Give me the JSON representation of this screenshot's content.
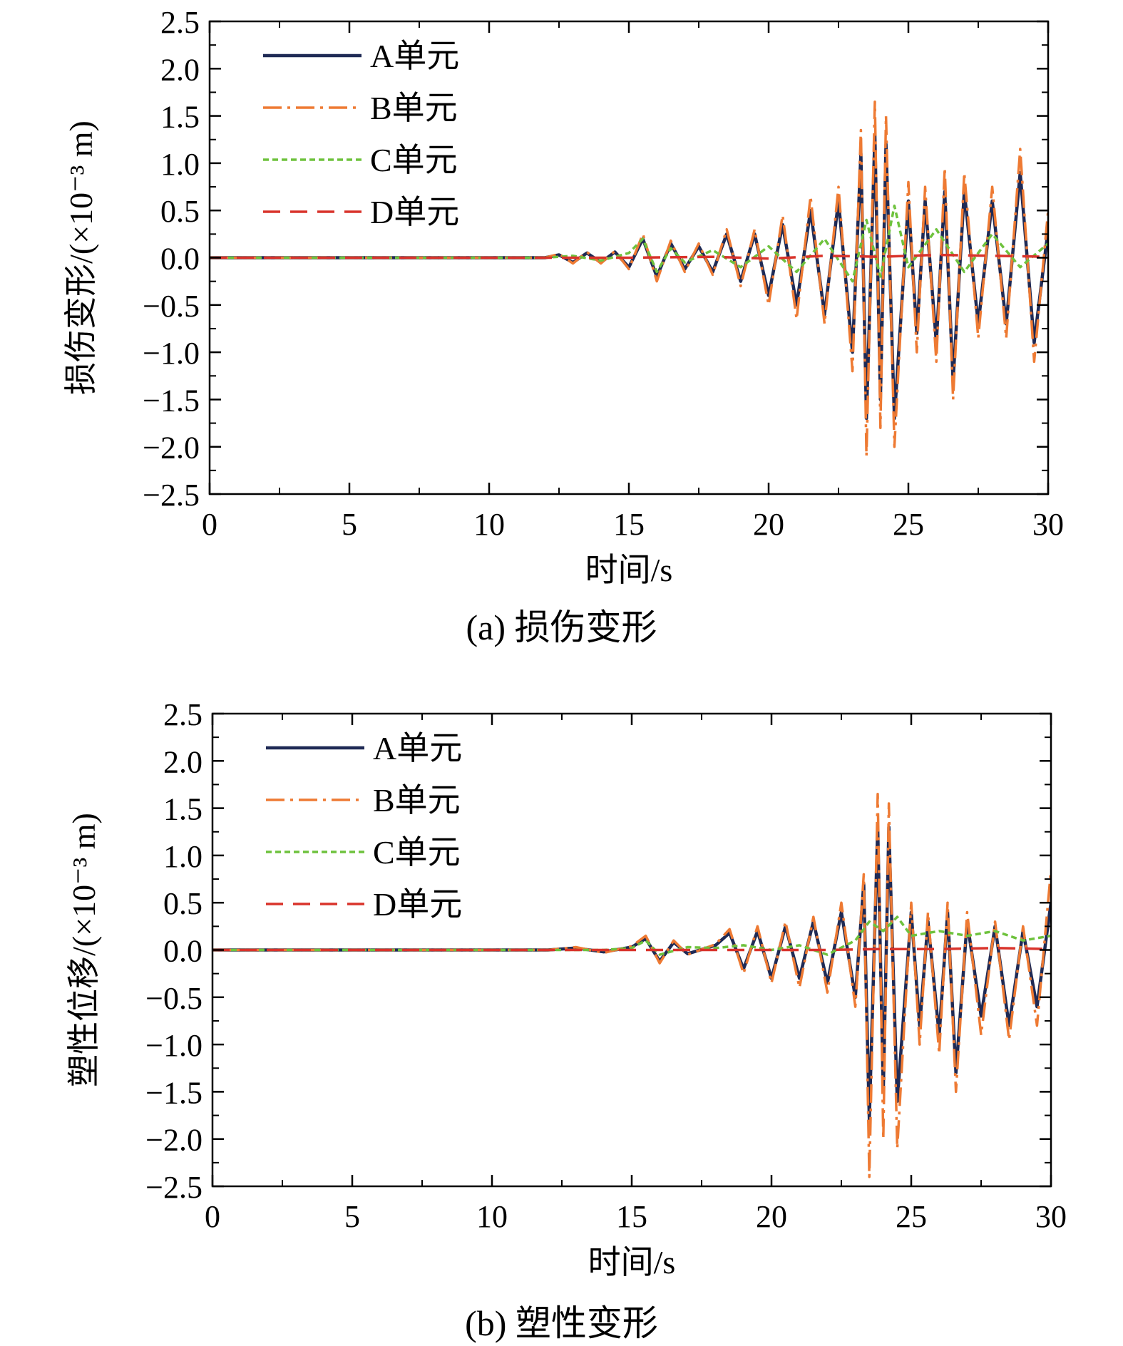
{
  "colors": {
    "A": "#1f2a55",
    "B": "#ee7a33",
    "C": "#6ec23d",
    "D": "#d9332b",
    "axis": "#000000"
  },
  "legend_labels": [
    "A单元",
    "B单元",
    "C单元",
    "D单元"
  ],
  "captions": {
    "a": "(a) 损伤变形",
    "b": "(b) 塑性变形"
  },
  "chart_data": [
    {
      "type": "line",
      "title": "(a) 损伤变形",
      "xlabel": "时间/s",
      "ylabel": "损伤变形/(×10⁻³ m)",
      "xlim": [
        0,
        30
      ],
      "ylim": [
        -2.5,
        2.5
      ],
      "xticks": [
        0,
        5,
        10,
        15,
        20,
        25,
        30
      ],
      "yticks": [
        -2.5,
        -2.0,
        -1.5,
        -1.0,
        -0.5,
        0.0,
        0.5,
        1.0,
        1.5,
        2.0,
        2.5
      ],
      "ytick_labels": [
        "−2.5",
        "−2.0",
        "−1.5",
        "−1.0",
        "−0.5",
        "0.0",
        "0.5",
        "1.0",
        "1.5",
        "2.0",
        "2.5"
      ],
      "legend": "top-left",
      "grid": false,
      "series": [
        {
          "name": "A单元",
          "style": "solid",
          "x": [
            0,
            12,
            12.5,
            13,
            13.5,
            14,
            14.5,
            15,
            15.5,
            16,
            16.5,
            17,
            17.5,
            18,
            18.5,
            19,
            19.5,
            20,
            20.5,
            21,
            21.5,
            22,
            22.5,
            23,
            23.3,
            23.5,
            23.8,
            24,
            24.2,
            24.5,
            25,
            25.3,
            25.6,
            26,
            26.3,
            26.6,
            27,
            27.5,
            28,
            28.5,
            29,
            29.5,
            30
          ],
          "y": [
            0,
            0,
            0.03,
            -0.05,
            0.05,
            -0.05,
            0.06,
            -0.1,
            0.2,
            -0.2,
            0.15,
            -0.12,
            0.12,
            -0.15,
            0.25,
            -0.25,
            0.25,
            -0.4,
            0.35,
            -0.5,
            0.5,
            -0.6,
            0.6,
            -1.0,
            1.1,
            -1.7,
            1.3,
            -1.5,
            1.2,
            -1.7,
            0.6,
            -0.8,
            0.6,
            -0.9,
            0.7,
            -1.3,
            0.7,
            -0.7,
            0.6,
            -0.7,
            0.9,
            -0.9,
            0.3
          ]
        },
        {
          "name": "B单元",
          "style": "dashdot",
          "x": [
            0,
            12,
            12.5,
            13,
            13.5,
            14,
            14.5,
            15,
            15.5,
            16,
            16.5,
            17,
            17.5,
            18,
            18.5,
            19,
            19.5,
            20,
            20.5,
            21,
            21.5,
            22,
            22.5,
            23,
            23.3,
            23.5,
            23.8,
            24,
            24.2,
            24.5,
            25,
            25.3,
            25.6,
            26,
            26.3,
            26.6,
            27,
            27.5,
            28,
            28.5,
            29,
            29.5,
            30
          ],
          "y": [
            0,
            0,
            0.04,
            -0.06,
            0.06,
            -0.06,
            0.07,
            -0.12,
            0.25,
            -0.25,
            0.18,
            -0.15,
            0.15,
            -0.18,
            0.3,
            -0.3,
            0.3,
            -0.5,
            0.45,
            -0.65,
            0.65,
            -0.7,
            0.75,
            -1.2,
            1.35,
            -2.1,
            1.65,
            -1.8,
            1.5,
            -2.0,
            0.8,
            -1.0,
            0.75,
            -1.1,
            0.95,
            -1.5,
            0.9,
            -0.85,
            0.75,
            -0.85,
            1.15,
            -1.1,
            0.5
          ]
        },
        {
          "name": "C单元",
          "style": "dotted",
          "x": [
            0,
            12,
            13,
            14,
            15,
            15.5,
            16,
            16.5,
            17,
            18,
            19,
            20,
            21,
            22,
            23,
            23.5,
            24,
            24.5,
            25,
            26,
            27,
            28,
            29,
            30
          ],
          "y": [
            0,
            0,
            0.02,
            -0.03,
            0.05,
            0.2,
            -0.15,
            0.1,
            -0.05,
            0.08,
            -0.1,
            0.12,
            -0.15,
            0.2,
            -0.25,
            0.4,
            -0.2,
            0.55,
            -0.1,
            0.3,
            -0.15,
            0.25,
            -0.1,
            0.15
          ]
        },
        {
          "name": "D单元",
          "style": "dashed",
          "x": [
            0,
            12,
            15,
            18,
            20,
            22,
            24,
            26,
            28,
            30
          ],
          "y": [
            0,
            0,
            0,
            0.01,
            -0.01,
            0.02,
            0.01,
            0.03,
            0.02,
            0.01
          ]
        }
      ]
    },
    {
      "type": "line",
      "title": "(b) 塑性变形",
      "xlabel": "时间/s",
      "ylabel": "塑性位移/(×10⁻³ m)",
      "xlim": [
        0,
        30
      ],
      "ylim": [
        -2.5,
        2.5
      ],
      "xticks": [
        0,
        5,
        10,
        15,
        20,
        25,
        30
      ],
      "yticks": [
        -2.5,
        -2.0,
        -1.5,
        -1.0,
        -0.5,
        0.0,
        0.5,
        1.0,
        1.5,
        2.0,
        2.5
      ],
      "ytick_labels": [
        "−2.5",
        "−2.0",
        "−1.5",
        "−1.0",
        "−0.5",
        "0.0",
        "0.5",
        "1.0",
        "1.5",
        "2.0",
        "2.5"
      ],
      "legend": "top-left",
      "grid": false,
      "series": [
        {
          "name": "A单元",
          "style": "solid",
          "x": [
            0,
            12,
            13,
            14,
            15,
            15.5,
            16,
            16.5,
            17,
            18,
            18.5,
            19,
            19.5,
            20,
            20.5,
            21,
            21.5,
            22,
            22.5,
            23,
            23.3,
            23.5,
            23.8,
            24,
            24.2,
            24.5,
            25,
            25.3,
            25.6,
            26,
            26.3,
            26.6,
            27,
            27.5,
            28,
            28.5,
            29,
            29.5,
            30
          ],
          "y": [
            0,
            0,
            0.02,
            -0.02,
            0.03,
            0.12,
            -0.12,
            0.08,
            -0.04,
            0.05,
            0.18,
            -0.2,
            0.2,
            -0.3,
            0.25,
            -0.3,
            0.3,
            -0.35,
            0.4,
            -0.5,
            0.7,
            -1.8,
            1.3,
            -1.5,
            1.3,
            -1.6,
            0.4,
            -0.8,
            0.3,
            -0.9,
            0.4,
            -1.3,
            0.3,
            -0.7,
            0.25,
            -0.8,
            0.2,
            -0.6,
            0.5
          ]
        },
        {
          "name": "B单元",
          "style": "dashdot",
          "x": [
            0,
            12,
            13,
            14,
            15,
            15.5,
            16,
            16.5,
            17,
            18,
            18.5,
            19,
            19.5,
            20,
            20.5,
            21,
            21.5,
            22,
            22.5,
            23,
            23.3,
            23.5,
            23.8,
            24,
            24.2,
            24.5,
            25,
            25.3,
            25.6,
            26,
            26.3,
            26.6,
            27,
            27.5,
            28,
            28.5,
            29,
            29.5,
            30
          ],
          "y": [
            0,
            0,
            0.03,
            -0.03,
            0.04,
            0.15,
            -0.14,
            0.1,
            -0.05,
            0.06,
            0.22,
            -0.25,
            0.25,
            -0.35,
            0.3,
            -0.4,
            0.35,
            -0.45,
            0.5,
            -0.6,
            0.8,
            -2.4,
            1.65,
            -2.0,
            1.55,
            -2.1,
            0.5,
            -1.0,
            0.4,
            -1.1,
            0.5,
            -1.5,
            0.4,
            -0.9,
            0.3,
            -0.95,
            0.25,
            -0.8,
            0.85
          ]
        },
        {
          "name": "C单元",
          "style": "dotted",
          "x": [
            0,
            12,
            14,
            15,
            15.5,
            16,
            17,
            18,
            19,
            20,
            21,
            22,
            23,
            23.5,
            24,
            24.5,
            25,
            26,
            27,
            28,
            29,
            30
          ],
          "y": [
            0,
            0,
            0,
            0.02,
            0.1,
            -0.05,
            0.03,
            0.02,
            0.05,
            0,
            0.05,
            -0.05,
            0.1,
            0.3,
            0.2,
            0.35,
            0.15,
            0.2,
            0.15,
            0.2,
            0.1,
            0.15
          ]
        },
        {
          "name": "D单元",
          "style": "dashed",
          "x": [
            0,
            12,
            15,
            18,
            20,
            22,
            24,
            26,
            28,
            30
          ],
          "y": [
            0,
            0,
            0,
            0,
            0,
            0,
            0.01,
            0.01,
            0.02,
            0.01
          ]
        }
      ]
    }
  ]
}
